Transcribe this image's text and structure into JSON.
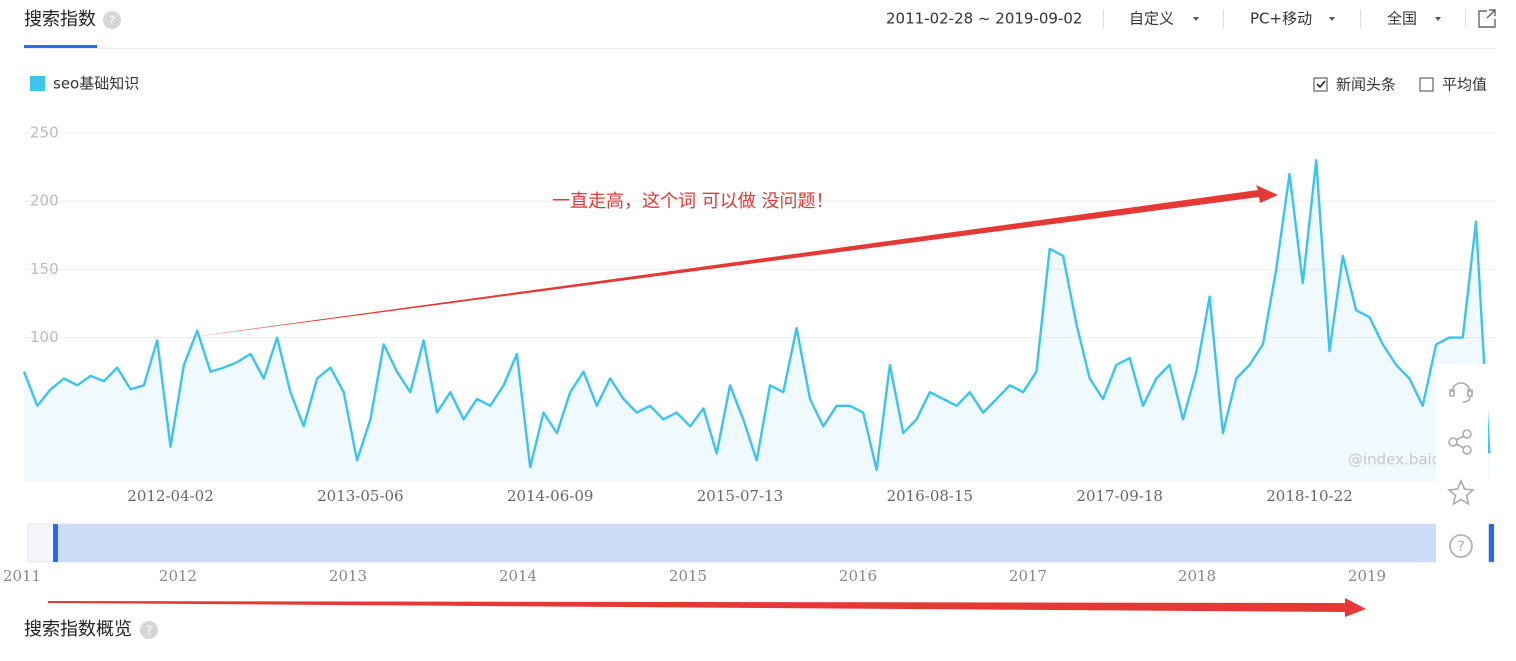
{
  "header": {
    "title": "搜索指数",
    "date_range": "2011-02-28 ~ 2019-09-02",
    "period": "自定义",
    "device": "PC+移动",
    "region": "全国"
  },
  "options": {
    "news": "新闻头条",
    "news_checked": true,
    "average": "平均值",
    "average_checked": false
  },
  "watermark": "@index.baidu.com",
  "annotation": "一直走高，这个词 可以做 没问题！",
  "slider": {
    "years": [
      "2011",
      "2012",
      "2013",
      "2014",
      "2015",
      "2016",
      "2017",
      "2018",
      "2019"
    ]
  },
  "footer": {
    "title": "搜索指数概览"
  },
  "chart_data": {
    "type": "line",
    "x": [
      "2011-05-30",
      "2011-06-27",
      "2011-07-25",
      "2011-08-22",
      "2011-09-19",
      "2011-10-17",
      "2011-11-14",
      "2011-12-12",
      "2012-01-09",
      "2012-02-06",
      "2012-03-05",
      "2012-04-02",
      "2012-04-30",
      "2012-05-28",
      "2012-06-25",
      "2012-07-23",
      "2012-08-20",
      "2012-09-17",
      "2012-10-15",
      "2012-11-12",
      "2012-12-10",
      "2013-01-07",
      "2013-02-04",
      "2013-03-04",
      "2013-04-01",
      "2013-04-29",
      "2013-05-27",
      "2013-06-24",
      "2013-07-22",
      "2013-08-19",
      "2013-09-16",
      "2013-10-14",
      "2013-11-11",
      "2013-12-09",
      "2014-01-06",
      "2014-02-03",
      "2014-03-03",
      "2014-03-31",
      "2014-04-28",
      "2014-05-26",
      "2014-06-23",
      "2014-07-21",
      "2014-08-18",
      "2014-09-15",
      "2014-10-13",
      "2014-11-10",
      "2014-12-08",
      "2015-01-05",
      "2015-02-02",
      "2015-03-02",
      "2015-03-30",
      "2015-04-27",
      "2015-05-25",
      "2015-06-22",
      "2015-07-20",
      "2015-08-17",
      "2015-09-14",
      "2015-10-12",
      "2015-11-09",
      "2015-12-07",
      "2016-01-04",
      "2016-02-01",
      "2016-02-29",
      "2016-03-28",
      "2016-04-25",
      "2016-05-23",
      "2016-06-20",
      "2016-07-18",
      "2016-08-15",
      "2016-09-12",
      "2016-10-10",
      "2016-11-07",
      "2016-12-05",
      "2017-01-02",
      "2017-01-30",
      "2017-02-27",
      "2017-03-27",
      "2017-04-24",
      "2017-05-22",
      "2017-06-19",
      "2017-07-17",
      "2017-08-14",
      "2017-09-11",
      "2017-10-09",
      "2017-11-06",
      "2017-12-04",
      "2018-01-01",
      "2018-01-29",
      "2018-02-26",
      "2018-03-26",
      "2018-04-23",
      "2018-05-21",
      "2018-06-18",
      "2018-07-16",
      "2018-08-13",
      "2018-09-10",
      "2018-10-08",
      "2018-11-05",
      "2018-12-03",
      "2018-12-31",
      "2019-01-28",
      "2019-02-25",
      "2019-03-25",
      "2019-04-22",
      "2019-05-20",
      "2019-06-17",
      "2019-07-15",
      "2019-08-12",
      "2019-09-09",
      "2019-10-07",
      "2019-11-04"
    ],
    "series": [
      {
        "name": "seo基础知识",
        "color": "#3cc4ef",
        "values": [
          75,
          50,
          62,
          70,
          65,
          72,
          68,
          78,
          62,
          65,
          98,
          20,
          80,
          105,
          75,
          78,
          82,
          88,
          70,
          100,
          60,
          35,
          70,
          78,
          60,
          10,
          40,
          95,
          75,
          60,
          98,
          45,
          60,
          40,
          55,
          50,
          65,
          88,
          5,
          45,
          30,
          60,
          75,
          50,
          70,
          55,
          45,
          50,
          40,
          45,
          35,
          48,
          15,
          65,
          40,
          10,
          65,
          60,
          107,
          55,
          35,
          50,
          50,
          45,
          3,
          80,
          30,
          40,
          60,
          55,
          50,
          60,
          45,
          55,
          65,
          60,
          75,
          165,
          160,
          110,
          70,
          55,
          80,
          85,
          50,
          70,
          80,
          40,
          75,
          130,
          30,
          70,
          80,
          95,
          150,
          220,
          140,
          230,
          90,
          160,
          120,
          115,
          95,
          80,
          70,
          50,
          95,
          100,
          100,
          185,
          15
        ]
      }
    ],
    "xlim": [
      "2011-05-30",
      "2019-11-18"
    ],
    "xticks": [
      "2012-04-02",
      "2013-05-06",
      "2014-06-09",
      "2015-07-13",
      "2016-08-15",
      "2017-09-18",
      "2018-10-22"
    ],
    "ylim": [
      0,
      250
    ],
    "yticks": [
      100,
      150,
      200,
      250
    ],
    "grid": true
  }
}
